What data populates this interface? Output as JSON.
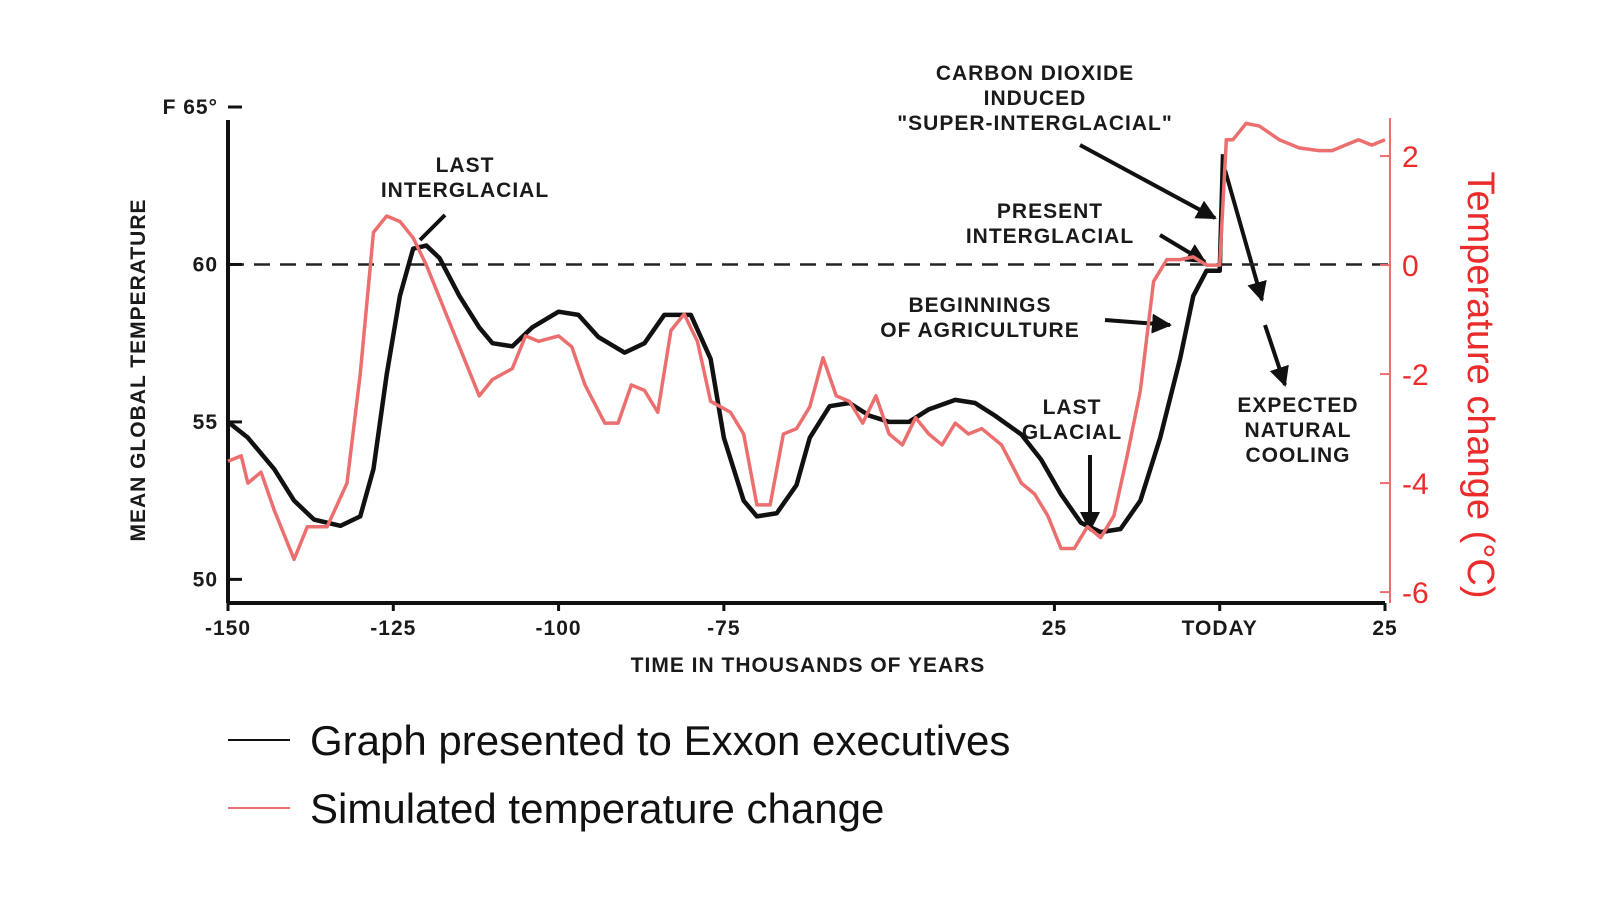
{
  "chart_data": {
    "type": "line",
    "ylabel": "MEAN GLOBAL TEMPERATURE",
    "xlabel": "TIME IN THOUSANDS OF YEARS",
    "y2label": "Temperature change (°C)",
    "xlim": [
      -150,
      25
    ],
    "xticks": [
      -150,
      -125,
      -100,
      -75,
      {
        "value": -25,
        "label": "25"
      },
      {
        "value": 0,
        "label": "TODAY"
      },
      25
    ],
    "ylim": [
      49.25,
      65
    ],
    "yticks": [
      {
        "value": 65,
        "label": "F 65°"
      },
      60,
      55,
      50
    ],
    "y2lim": [
      -6.2,
      2.9
    ],
    "y2ticks": [
      2,
      0,
      -2,
      -4,
      -6
    ],
    "hline": 60,
    "annotations": [
      [
        "CARBON DIOXIDE",
        "INDUCED",
        "\"SUPER-INTERGLACIAL\""
      ],
      [
        "LAST",
        "INTERGLACIAL"
      ],
      [
        "PRESENT",
        "INTERGLACIAL"
      ],
      [
        "BEGINNINGS",
        "OF AGRICULTURE"
      ],
      [
        "LAST",
        "GLACIAL"
      ],
      [
        "EXPECTED",
        "NATURAL",
        "COOLING"
      ]
    ],
    "series": [
      {
        "name": "Graph presented to Exxon executives",
        "color": "#111111",
        "x": [
          -150,
          -147,
          -143,
          -140,
          -137,
          -133,
          -130,
          -128,
          -126,
          -124,
          -122,
          -120,
          -118,
          -115,
          -112,
          -110,
          -107,
          -104,
          -100,
          -97,
          -94,
          -90,
          -87,
          -84,
          -80,
          -77,
          -75,
          -72,
          -70,
          -67,
          -64,
          -62,
          -59,
          -56,
          -53,
          -50,
          -47,
          -44,
          -40,
          -37,
          -34,
          -30,
          -27,
          -24,
          -21,
          -18,
          -15,
          -12,
          -9,
          -6,
          -4,
          -2,
          0,
          0.5
        ],
        "values": [
          55,
          54.5,
          53.5,
          52.5,
          51.9,
          51.7,
          52,
          53.5,
          56.5,
          59,
          60.5,
          60.6,
          60.2,
          59,
          58,
          57.5,
          57.4,
          58,
          58.5,
          58.4,
          57.7,
          57.2,
          57.5,
          58.4,
          58.4,
          57,
          54.5,
          52.5,
          52,
          52.1,
          53,
          54.5,
          55.5,
          55.6,
          55.2,
          55,
          55,
          55.4,
          55.7,
          55.6,
          55.2,
          54.6,
          53.8,
          52.7,
          51.8,
          51.5,
          51.6,
          52.5,
          54.5,
          57,
          59,
          59.8,
          59.8,
          63.5
        ]
      },
      {
        "name": "Simulated temperature change",
        "color": "#ec6f6f",
        "axis": "y2",
        "x": [
          -150,
          -148,
          -147,
          -145,
          -143,
          -140,
          -138,
          -135,
          -132,
          -130,
          -128,
          -126,
          -124,
          -122,
          -120,
          -117,
          -115,
          -112,
          -110,
          -107,
          -105,
          -103,
          -100,
          -98,
          -96,
          -93,
          -91,
          -89,
          -87,
          -85,
          -83,
          -81,
          -79,
          -77,
          -74,
          -72,
          -70,
          -68,
          -66,
          -64,
          -62,
          -60,
          -58,
          -56,
          -54,
          -52,
          -50,
          -48,
          -46,
          -44,
          -42,
          -40,
          -38,
          -36,
          -33,
          -30,
          -28,
          -26,
          -24,
          -22,
          -20,
          -18,
          -16,
          -14,
          -12,
          -10,
          -8,
          -6,
          -4,
          -2,
          0,
          1,
          2,
          4,
          6,
          9,
          12,
          15,
          17,
          19,
          21,
          23,
          25
        ],
        "values": [
          -3.6,
          -3.5,
          -4,
          -3.8,
          -4.5,
          -5.4,
          -4.8,
          -4.8,
          -4,
          -2,
          0.6,
          0.9,
          0.8,
          0.5,
          0,
          -0.9,
          -1.5,
          -2.4,
          -2.1,
          -1.9,
          -1.3,
          -1.4,
          -1.3,
          -1.5,
          -2.2,
          -2.9,
          -2.9,
          -2.2,
          -2.3,
          -2.7,
          -1.2,
          -0.9,
          -1.4,
          -2.5,
          -2.7,
          -3.1,
          -4.4,
          -4.4,
          -3.1,
          -3,
          -2.6,
          -1.7,
          -2.4,
          -2.5,
          -2.9,
          -2.4,
          -3.1,
          -3.3,
          -2.8,
          -3.1,
          -3.3,
          -2.9,
          -3.1,
          -3,
          -3.3,
          -4,
          -4.2,
          -4.6,
          -5.2,
          -5.2,
          -4.8,
          -5,
          -4.6,
          -3.5,
          -2.3,
          -0.3,
          0.1,
          0.1,
          0.15,
          0,
          0,
          2.3,
          2.3,
          2.6,
          2.55,
          2.3,
          2.15,
          2.1,
          2.1,
          2.2,
          2.3,
          2.2,
          2.3
        ]
      }
    ]
  }
}
